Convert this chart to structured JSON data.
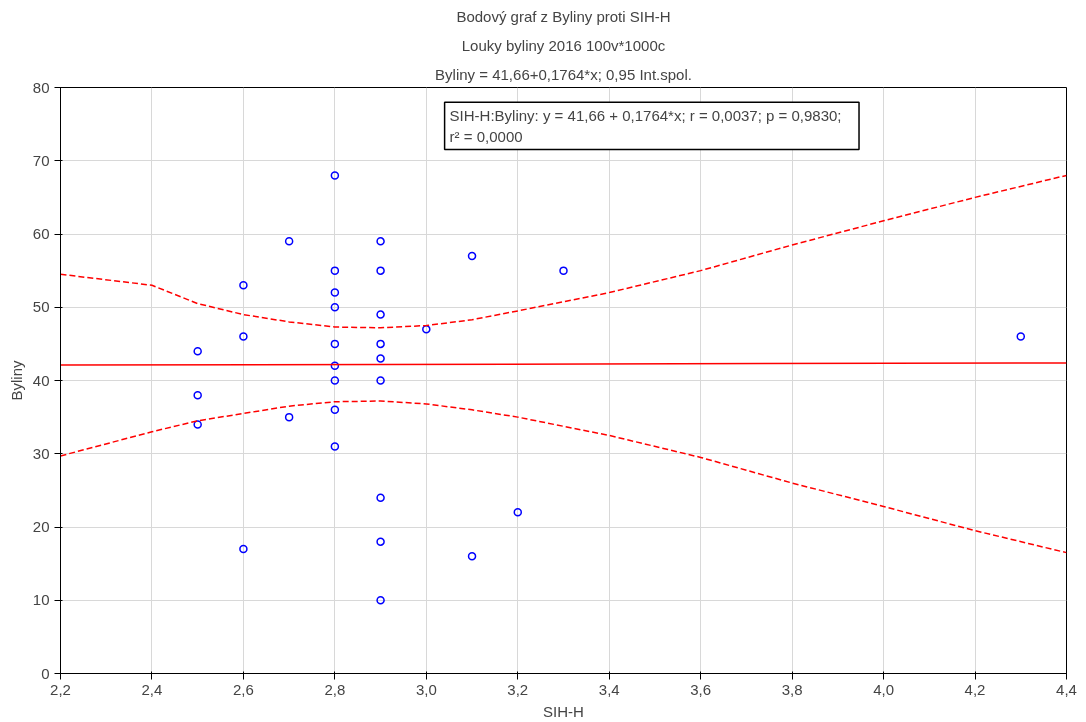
{
  "chart_data": {
    "type": "scatter",
    "title": "Bodový graf z Byliny proti SIH-H",
    "subtitle": "Louky byliny 2016 100v*1000c",
    "xlabel": "SIH-H",
    "ylabel": "Byliny",
    "annotations": [
      "Byliny = 41,66+0,1764*x; 0,95 Int.spol.",
      "SIH-H:Byliny:   y = 41,66 + 0,1764*x;  r = 0,0037; p = 0,9830;\nr² = 0,0000"
    ],
    "series": [
      {
        "color": "#0000ff",
        "marker": "circle",
        "x": [
          2.5,
          2.5,
          2.5,
          2.6,
          2.6,
          2.6,
          2.7,
          2.7,
          2.8,
          2.8,
          2.8,
          2.8,
          2.8,
          2.8,
          2.8,
          2.8,
          2.8,
          2.9,
          2.9,
          2.9,
          2.9,
          2.9,
          2.9,
          2.9,
          2.9,
          2.9,
          3.0,
          3.1,
          3.1,
          3.2,
          3.3,
          4.3
        ],
        "values": [
          44,
          38,
          34,
          53,
          46,
          17,
          59,
          35,
          68,
          55,
          52,
          50,
          45,
          42,
          40,
          36,
          31,
          59,
          55,
          49,
          45,
          43,
          40,
          24,
          18,
          10,
          47,
          57,
          16,
          22,
          55,
          46
        ]
      },
      {
        "type": "line",
        "color": "#ff0000",
        "line_style": "solid",
        "x": [
          2.2,
          4.4
        ],
        "values": [
          42.1,
          42.4
        ]
      },
      {
        "type": "line",
        "color": "#ff0000",
        "line_style": "dashed",
        "x": [
          2.2,
          2.4,
          2.5,
          2.6,
          2.7,
          2.8,
          2.9,
          3.0,
          3.1,
          3.2,
          3.4,
          3.6,
          3.8,
          4.0,
          4.2,
          4.4
        ],
        "values": [
          29.7,
          33,
          34.5,
          35.5,
          36.5,
          37.1,
          37.2,
          36.8,
          36,
          35,
          32.5,
          29.5,
          26,
          22.8,
          19.5,
          16.5
        ]
      },
      {
        "type": "line",
        "color": "#ff0000",
        "line_style": "dashed",
        "x": [
          2.2,
          2.4,
          2.5,
          2.6,
          2.7,
          2.8,
          2.9,
          3.0,
          3.1,
          3.2,
          3.4,
          3.6,
          3.8,
          4.0,
          4.2,
          4.4
        ],
        "values": [
          54.5,
          53,
          50.5,
          49,
          48,
          47.3,
          47.2,
          47.5,
          48.3,
          49.5,
          52,
          55,
          58.5,
          61.8,
          65,
          68
        ]
      }
    ],
    "xlim": [
      2.2,
      4.4
    ],
    "ylim": [
      0,
      80
    ],
    "xticks": [
      {
        "value": 2.2,
        "label": "2,2"
      },
      {
        "value": 2.4,
        "label": "2,4"
      },
      {
        "value": 2.6,
        "label": "2,6"
      },
      {
        "value": 2.8,
        "label": "2,8"
      },
      {
        "value": 3.0,
        "label": "3,0"
      },
      {
        "value": 3.2,
        "label": "3,2"
      },
      {
        "value": 3.4,
        "label": "3,4"
      },
      {
        "value": 3.6,
        "label": "3,6"
      },
      {
        "value": 3.8,
        "label": "3,8"
      },
      {
        "value": 4.0,
        "label": "4,0"
      },
      {
        "value": 4.2,
        "label": "4,2"
      },
      {
        "value": 4.4,
        "label": "4,4"
      }
    ],
    "yticks": [
      0,
      10,
      20,
      30,
      40,
      50,
      60,
      70,
      80
    ],
    "grid": true
  }
}
